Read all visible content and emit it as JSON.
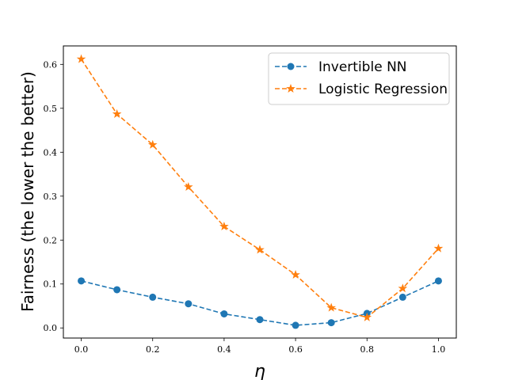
{
  "chart_data": {
    "type": "line",
    "x": [
      0.0,
      0.1,
      0.2,
      0.3,
      0.4,
      0.5,
      0.6,
      0.7,
      0.8,
      0.9,
      1.0
    ],
    "xlabel": "η",
    "ylabel": "Fairness (the lower the better)",
    "xlim": [
      -0.05,
      1.05
    ],
    "ylim": [
      -0.023,
      0.642
    ],
    "xticks": [
      "0.0",
      "0.2",
      "0.4",
      "0.6",
      "0.8",
      "1.0"
    ],
    "yticks": [
      "0.0",
      "0.1",
      "0.2",
      "0.3",
      "0.4",
      "0.5",
      "0.6"
    ],
    "grid": false,
    "legend_position": "top-right",
    "series": [
      {
        "name": "Invertible NN",
        "color": "#1f77b4",
        "marker": "circle",
        "linestyle": "dashed",
        "values": [
          0.107,
          0.087,
          0.07,
          0.055,
          0.032,
          0.019,
          0.006,
          0.012,
          0.033,
          0.07,
          0.107
        ]
      },
      {
        "name": "Logistic Regression",
        "color": "#ff7f0e",
        "marker": "star",
        "linestyle": "dashed",
        "values": [
          0.612,
          0.487,
          0.417,
          0.321,
          0.231,
          0.178,
          0.121,
          0.046,
          0.024,
          0.09,
          0.181
        ]
      }
    ]
  }
}
